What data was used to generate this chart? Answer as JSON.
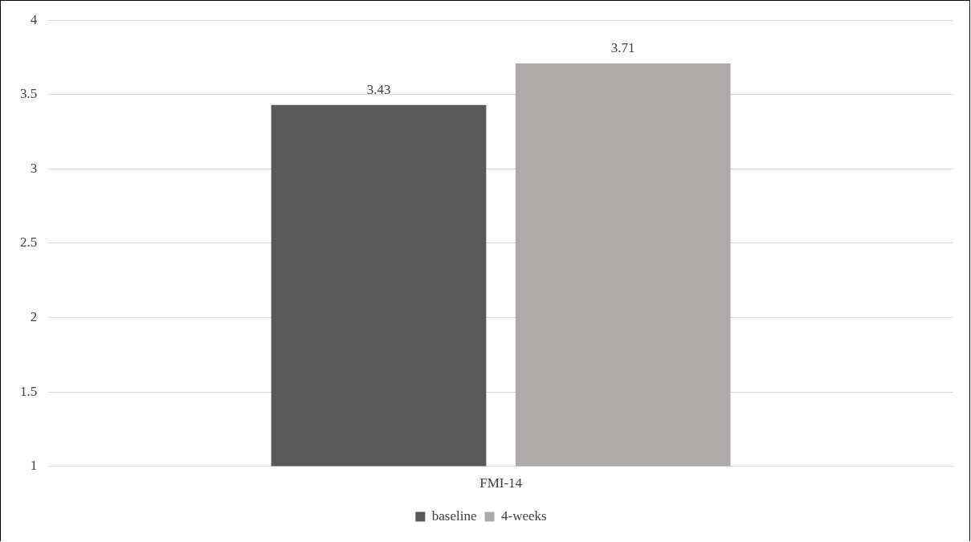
{
  "chart_data": {
    "type": "bar",
    "categories": [
      "FMI-14"
    ],
    "series": [
      {
        "name": "baseline",
        "color": "#595959",
        "values": [
          3.43
        ]
      },
      {
        "name": "4-weeks",
        "color": "#aeaaaa",
        "values": [
          3.71
        ]
      }
    ],
    "ylim": [
      1,
      4
    ],
    "yticks": [
      1,
      1.5,
      2,
      2.5,
      3,
      3.5,
      4
    ],
    "grid": "y",
    "legend": "bottom",
    "data_labels": true
  }
}
